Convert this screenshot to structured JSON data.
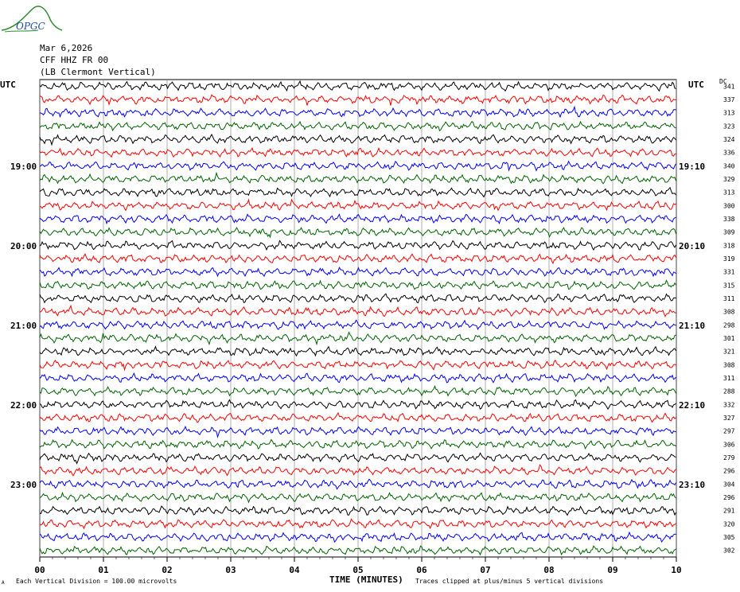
{
  "logo": {
    "text": "OPGC"
  },
  "header": {
    "date": "Mar 6,2026",
    "station": "CFF HHZ FR 00",
    "location": "(LB  Clermont Vertical)"
  },
  "utc_left": "UTC",
  "utc_right": "UTC",
  "dc_label": "DC",
  "left_time_labels": [
    "19:00",
    "20:00",
    "21:00",
    "22:00",
    "23:00"
  ],
  "right_time_labels": [
    "19:10",
    "20:10",
    "21:10",
    "22:10",
    "23:10"
  ],
  "footer": {
    "vertical_division": "Each Vertical Division =  100.00 microvolts",
    "clip_note": "Traces clipped at plus/minus 5 vertical divisions",
    "small_mark": "A"
  },
  "colors": [
    "#000000",
    "#ff0000",
    "#0000ff",
    "#006400"
  ],
  "chart_data": {
    "type": "line",
    "xlabel": "TIME (MINUTES)",
    "x_ticks": [
      "00",
      "01",
      "02",
      "03",
      "04",
      "05",
      "06",
      "07",
      "08",
      "09",
      "10"
    ],
    "xlim": [
      0,
      10
    ],
    "grid": true,
    "dc_offsets": [
      341,
      337,
      313,
      323,
      324,
      336,
      340,
      329,
      313,
      300,
      338,
      309,
      318,
      319,
      331,
      315,
      311,
      308,
      298,
      301,
      321,
      308,
      311,
      288,
      332,
      327,
      297,
      306,
      279,
      296,
      304,
      296,
      291,
      320,
      305,
      302
    ],
    "trace_count": 36
  }
}
